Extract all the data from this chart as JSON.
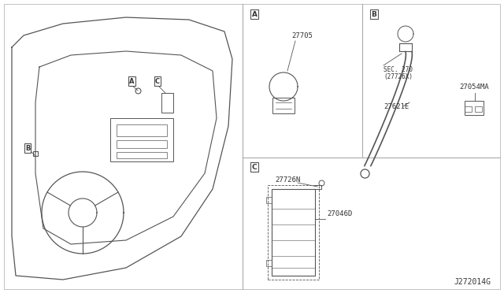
{
  "bg_color": "#ffffff",
  "line_color": "#555555",
  "text_color": "#333333",
  "fig_width": 6.4,
  "fig_height": 3.72,
  "dpi": 100,
  "diagram_code": "J272014G",
  "parts": {
    "A_label": "27705",
    "B_label_1": "SEC. 270",
    "B_label_2": "(27726X)",
    "B_label_3": "27621E",
    "B_label_4": "27054MA",
    "C_label_1": "27726N",
    "C_label_2": "27046D"
  },
  "section_labels": {
    "A": "A",
    "B": "B",
    "C": "C"
  },
  "border_color": "#aaaaaa",
  "dash_color": "#888888"
}
